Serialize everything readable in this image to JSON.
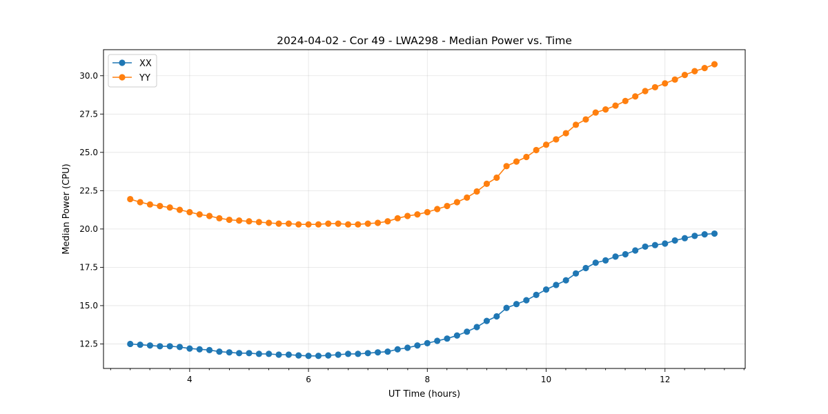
{
  "chart_data": {
    "type": "line",
    "title": "2024-04-02 - Cor 49 - LWA298 - Median Power vs. Time",
    "xlabel": "UT Time (hours)",
    "ylabel": "Median Power (CPU)",
    "xlim": [
      2.55,
      13.35
    ],
    "ylim": [
      10.9,
      31.7
    ],
    "xticks": [
      4,
      6,
      8,
      10,
      12
    ],
    "xtick_labels": [
      "4",
      "6",
      "8",
      "10",
      "12"
    ],
    "xminor_ticks": [
      2.67,
      3.0,
      3.33,
      3.67,
      4.33,
      4.67,
      5.0,
      5.33,
      5.67,
      6.33,
      6.67,
      7.0,
      7.33,
      7.67,
      8.33,
      8.67,
      9.0,
      9.33,
      9.67,
      10.33,
      10.67,
      11.0,
      11.33,
      11.67,
      12.33,
      12.67,
      13.0,
      13.33
    ],
    "yticks": [
      12.5,
      15.0,
      17.5,
      20.0,
      22.5,
      25.0,
      27.5,
      30.0
    ],
    "ytick_labels": [
      "12.5",
      "15.0",
      "17.5",
      "20.0",
      "22.5",
      "25.0",
      "27.5",
      "30.0"
    ],
    "grid": true,
    "legend": "top-left",
    "x": [
      3.0,
      3.167,
      3.333,
      3.5,
      3.667,
      3.833,
      4.0,
      4.167,
      4.333,
      4.5,
      4.667,
      4.833,
      5.0,
      5.167,
      5.333,
      5.5,
      5.667,
      5.833,
      6.0,
      6.167,
      6.333,
      6.5,
      6.667,
      6.833,
      7.0,
      7.167,
      7.333,
      7.5,
      7.667,
      7.833,
      8.0,
      8.167,
      8.333,
      8.5,
      8.667,
      8.833,
      9.0,
      9.167,
      9.333,
      9.5,
      9.667,
      9.833,
      10.0,
      10.167,
      10.333,
      10.5,
      10.667,
      10.833,
      11.0,
      11.167,
      11.333,
      11.5,
      11.667,
      11.833,
      12.0,
      12.167,
      12.333,
      12.5,
      12.667,
      12.833
    ],
    "series": [
      {
        "name": "XX",
        "color": "#1f77b4",
        "values": [
          12.5,
          12.45,
          12.4,
          12.35,
          12.35,
          12.3,
          12.2,
          12.15,
          12.1,
          12.0,
          11.95,
          11.9,
          11.9,
          11.85,
          11.85,
          11.8,
          11.8,
          11.75,
          11.72,
          11.72,
          11.75,
          11.8,
          11.85,
          11.85,
          11.9,
          11.95,
          12.0,
          12.15,
          12.25,
          12.4,
          12.55,
          12.7,
          12.85,
          13.05,
          13.3,
          13.6,
          14.0,
          14.3,
          14.85,
          15.1,
          15.35,
          15.7,
          16.05,
          16.35,
          16.65,
          17.1,
          17.45,
          17.8,
          17.95,
          18.2,
          18.35,
          18.6,
          18.85,
          18.95,
          19.05,
          19.25,
          19.4,
          19.55,
          19.65,
          19.7
        ]
      },
      {
        "name": "YY",
        "color": "#ff7f0e",
        "values": [
          21.95,
          21.75,
          21.6,
          21.5,
          21.4,
          21.25,
          21.1,
          20.95,
          20.85,
          20.7,
          20.6,
          20.55,
          20.5,
          20.45,
          20.4,
          20.35,
          20.35,
          20.3,
          20.3,
          20.3,
          20.35,
          20.35,
          20.3,
          20.3,
          20.35,
          20.4,
          20.5,
          20.7,
          20.85,
          20.95,
          21.1,
          21.3,
          21.5,
          21.75,
          22.05,
          22.45,
          22.95,
          23.35,
          24.1,
          24.4,
          24.7,
          25.15,
          25.5,
          25.85,
          26.25,
          26.8,
          27.15,
          27.6,
          27.8,
          28.05,
          28.35,
          28.65,
          29.0,
          29.25,
          29.5,
          29.75,
          30.05,
          30.3,
          30.5,
          30.75
        ]
      }
    ]
  }
}
